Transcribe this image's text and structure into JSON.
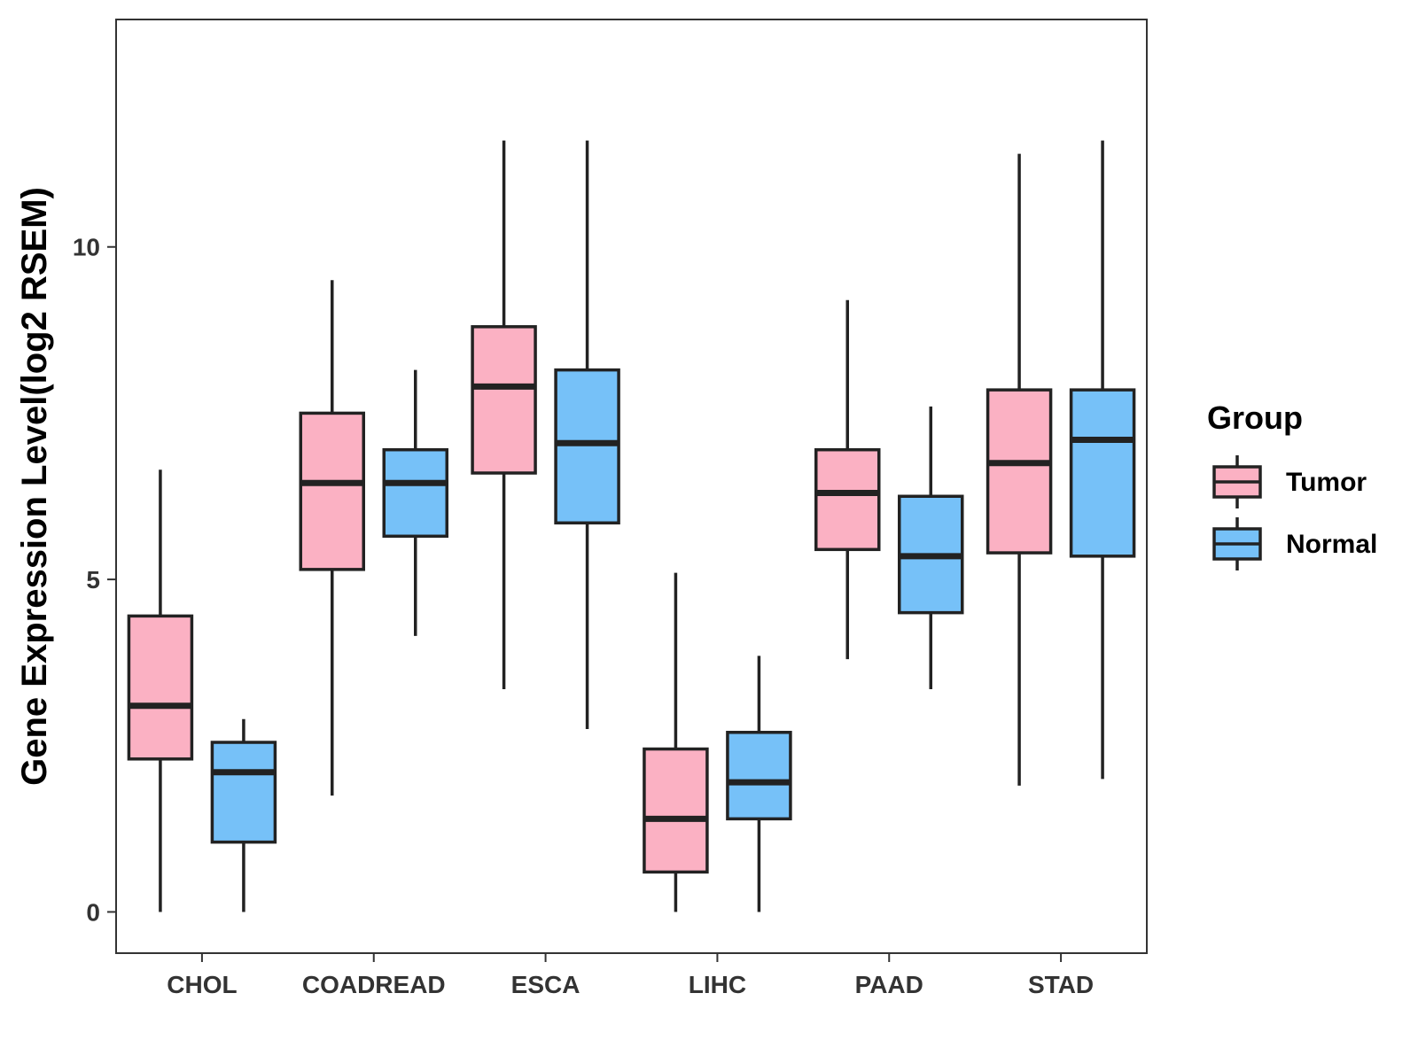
{
  "chart_data": {
    "type": "boxplot",
    "title": "",
    "xlabel": "",
    "ylabel": "Gene Expression Level(log2 RSEM)",
    "ylim": [
      -0.62,
      13.42
    ],
    "yticks": [
      0,
      5,
      10
    ],
    "ytick_labels": [
      "0",
      "5",
      "10"
    ],
    "categories": [
      "CHOL",
      "COADREAD",
      "ESCA",
      "LIHC",
      "PAAD",
      "STAD"
    ],
    "legend": {
      "title": "Group",
      "position": "right"
    },
    "colors": {
      "Tumor": "#fbb1c3",
      "Normal": "#76c1f8",
      "stroke": "#222222",
      "panel_border": "#333333"
    },
    "series": [
      {
        "name": "Tumor",
        "boxes": [
          {
            "min": 0.0,
            "q1": 2.3,
            "median": 3.1,
            "q3": 4.45,
            "max": 6.65
          },
          {
            "min": 1.75,
            "q1": 5.15,
            "median": 6.45,
            "q3": 7.5,
            "max": 9.5
          },
          {
            "min": 3.35,
            "q1": 6.6,
            "median": 7.9,
            "q3": 8.8,
            "max": 11.6
          },
          {
            "min": 0.0,
            "q1": 0.6,
            "median": 1.4,
            "q3": 2.45,
            "max": 5.1
          },
          {
            "min": 3.8,
            "q1": 5.45,
            "median": 6.3,
            "q3": 6.95,
            "max": 9.2
          },
          {
            "min": 1.9,
            "q1": 5.4,
            "median": 6.75,
            "q3": 7.85,
            "max": 11.4
          }
        ]
      },
      {
        "name": "Normal",
        "boxes": [
          {
            "min": 0.0,
            "q1": 1.05,
            "median": 2.1,
            "q3": 2.55,
            "max": 2.9
          },
          {
            "min": 4.15,
            "q1": 5.65,
            "median": 6.45,
            "q3": 6.95,
            "max": 8.15
          },
          {
            "min": 2.75,
            "q1": 5.85,
            "median": 7.05,
            "q3": 8.15,
            "max": 11.6
          },
          {
            "min": 0.0,
            "q1": 1.4,
            "median": 1.95,
            "q3": 2.7,
            "max": 3.85
          },
          {
            "min": 3.35,
            "q1": 4.5,
            "median": 5.35,
            "q3": 6.25,
            "max": 7.6
          },
          {
            "min": 2.0,
            "q1": 5.35,
            "median": 7.1,
            "q3": 7.85,
            "max": 11.6
          }
        ]
      }
    ]
  }
}
